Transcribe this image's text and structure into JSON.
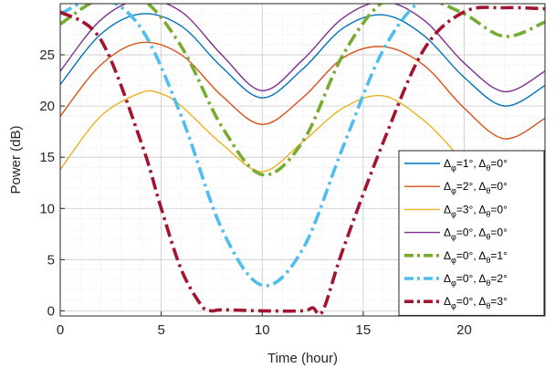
{
  "chart_data": {
    "type": "line",
    "xlabel": "Time (hour)",
    "ylabel": "Power (dB)",
    "xlim": [
      0,
      24
    ],
    "ylim": [
      -0.5,
      30
    ],
    "x_ticks": [
      0,
      5,
      10,
      15,
      20
    ],
    "y_ticks": [
      0,
      5,
      10,
      15,
      20,
      25
    ],
    "grid": true,
    "minor_grid": true,
    "legend_position": "lower-right",
    "series": [
      {
        "name": "Δφ=1°, Δθ=0°",
        "legend_parts": {
          "delta": "Δ",
          "sub1": "φ",
          "val1": "=1°, ",
          "sub2": "θ",
          "val2": "=0°"
        },
        "color": "#0072BD",
        "style": "solid",
        "x": [
          0,
          2,
          4,
          6,
          8,
          10,
          12,
          14,
          16,
          18,
          20,
          22,
          24
        ],
        "y": [
          22.1,
          27.0,
          29.0,
          27.8,
          23.8,
          20.8,
          23.6,
          27.6,
          28.9,
          26.9,
          22.8,
          20.0,
          22.0
        ]
      },
      {
        "name": "Δφ=2°, Δθ=0°",
        "legend_parts": {
          "delta": "Δ",
          "sub1": "φ",
          "val1": "=2°, ",
          "sub2": "θ",
          "val2": "=0°"
        },
        "color": "#D95319",
        "style": "solid",
        "x": [
          0,
          2,
          4,
          6,
          8,
          10,
          12,
          14,
          16,
          18,
          20,
          22,
          24
        ],
        "y": [
          19.0,
          24.0,
          26.2,
          25.0,
          21.0,
          18.2,
          20.8,
          24.7,
          25.8,
          24.0,
          19.8,
          16.8,
          18.8
        ]
      },
      {
        "name": "Δφ=3°, Δθ=0°",
        "legend_parts": {
          "delta": "Δ",
          "sub1": "φ",
          "val1": "=3°, ",
          "sub2": "θ",
          "val2": "=0°"
        },
        "color": "#EDB120",
        "style": "solid",
        "x": [
          0,
          2,
          4,
          5,
          6,
          8,
          10,
          12,
          14,
          16,
          18,
          19.5
        ],
        "y": [
          13.8,
          19.0,
          21.3,
          21.2,
          20.0,
          16.3,
          13.6,
          16.5,
          19.8,
          21.0,
          18.6,
          15.6
        ]
      },
      {
        "name": "Δφ=0°, Δθ=0°",
        "legend_parts": {
          "delta": "Δ",
          "sub1": "φ",
          "val1": "=0°, ",
          "sub2": "θ",
          "val2": "=0°"
        },
        "color": "#7E2F8E",
        "style": "solid",
        "x": [
          0,
          2,
          4,
          6,
          8,
          10,
          12,
          14,
          16,
          18,
          20,
          22,
          24
        ],
        "y": [
          23.4,
          28.4,
          30.4,
          29.2,
          25.0,
          21.5,
          24.5,
          28.6,
          30.2,
          28.4,
          24.2,
          21.4,
          23.4
        ]
      },
      {
        "name": "Δφ=0°, Δθ=1°",
        "legend_parts": {
          "delta": "Δ",
          "sub1": "φ",
          "val1": "=0°, ",
          "sub2": "θ",
          "val2": "=1°"
        },
        "color": "#77AC30",
        "style": "dashdot",
        "x": [
          0,
          2,
          4,
          6,
          8,
          10,
          12,
          14,
          16,
          18,
          20,
          22,
          24
        ],
        "y": [
          28.0,
          30.5,
          30.5,
          25.8,
          18.0,
          13.3,
          16.5,
          25.0,
          30.2,
          30.5,
          29.0,
          26.8,
          28.2
        ]
      },
      {
        "name": "Δφ=0°, Δθ=2°",
        "legend_parts": {
          "delta": "Δ",
          "sub1": "φ",
          "val1": "=0°, ",
          "sub2": "θ",
          "val2": "=2°"
        },
        "color": "#4DBEEE",
        "style": "dashdot",
        "x": [
          0,
          2,
          4,
          6,
          8,
          10,
          12,
          14,
          16,
          18,
          20,
          22,
          24
        ],
        "y": [
          29.0,
          30.5,
          27.6,
          19.0,
          8.0,
          2.5,
          6.0,
          16.0,
          25.5,
          30.5,
          30.5,
          30.5,
          30.5
        ]
      },
      {
        "name": "Δφ=0°, Δθ=3°",
        "legend_parts": {
          "delta": "Δ",
          "sub1": "φ",
          "val1": "=0°, ",
          "sub2": "θ",
          "val2": "=3°"
        },
        "color": "#A2142F",
        "style": "dashdot",
        "x": [
          0,
          2,
          4,
          5,
          6,
          7,
          7.5,
          8,
          10,
          12,
          12.5,
          13,
          14,
          16,
          18,
          20,
          22,
          24
        ],
        "y": [
          29.2,
          26.5,
          16.5,
          10.0,
          4.0,
          0.5,
          0.0,
          0.1,
          0.0,
          0.0,
          0.3,
          0.0,
          6.0,
          16.5,
          25.5,
          29.2,
          29.6,
          29.5
        ]
      }
    ]
  }
}
